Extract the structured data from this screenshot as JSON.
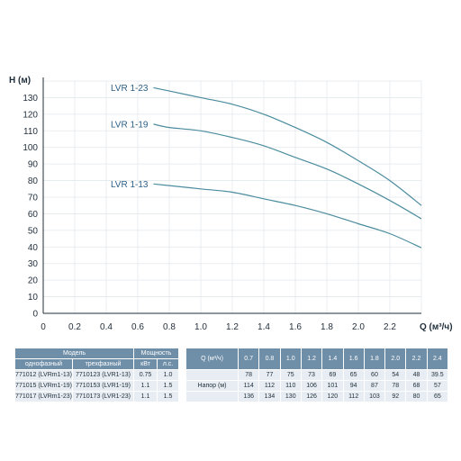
{
  "chart_data": {
    "type": "line",
    "xlabel": "Q (м³/ч)",
    "ylabel": "Н (м)",
    "xlim": [
      0,
      2.4
    ],
    "ylim": [
      0,
      140
    ],
    "xticks": [
      "0",
      "0.2",
      "0.4",
      "0.6",
      "0.8",
      "1.0",
      "1.2",
      "1.4",
      "1.6",
      "1.8",
      "2.0",
      "2.2"
    ],
    "yticks": [
      "0",
      "10",
      "20",
      "30",
      "40",
      "50",
      "60",
      "70",
      "80",
      "90",
      "100",
      "110",
      "120",
      "130"
    ],
    "grid": true,
    "line_color": "#4b8c9e",
    "series": [
      {
        "name": "LVR 1-23",
        "x": [
          0.7,
          0.8,
          1.0,
          1.2,
          1.4,
          1.6,
          1.8,
          2.0,
          2.2,
          2.4
        ],
        "y": [
          136,
          134,
          130,
          126,
          120,
          112,
          103,
          92,
          80,
          65
        ]
      },
      {
        "name": "LVR 1-19",
        "x": [
          0.7,
          0.8,
          1.0,
          1.2,
          1.4,
          1.6,
          1.8,
          2.0,
          2.2,
          2.4
        ],
        "y": [
          114,
          112,
          110,
          106,
          101,
          94,
          87,
          78,
          68,
          57
        ]
      },
      {
        "name": "LVR 1-13",
        "x": [
          0.7,
          0.8,
          1.0,
          1.2,
          1.4,
          1.6,
          1.8,
          2.0,
          2.2,
          2.4
        ],
        "y": [
          78,
          77,
          75,
          73,
          69,
          65,
          60,
          54,
          48,
          39.5
        ]
      }
    ]
  },
  "table": {
    "model_header": "Модель",
    "single_phase_header": "однофазный",
    "three_phase_header": "трехфазный",
    "power_header": "Мощность",
    "kw_header": "кВт",
    "hp_header": "л.с.",
    "q_header": "Q (м³/ч)",
    "head_label": "Напор (м)",
    "q_values": [
      "0.7",
      "0.8",
      "1.0",
      "1.2",
      "1.4",
      "1.6",
      "1.8",
      "2.0",
      "2.2",
      "2.4"
    ],
    "rows": [
      {
        "single": "771012 (LVRm1-13)",
        "three": "7710123 (LVR1-13)",
        "kw": "0.75",
        "hp": "1.0",
        "head": [
          "78",
          "77",
          "75",
          "73",
          "69",
          "65",
          "60",
          "54",
          "48",
          "39.5"
        ]
      },
      {
        "single": "771015 (LVRm1-19)",
        "three": "7710153 (LVR1-19)",
        "kw": "1.1",
        "hp": "1.5",
        "head": [
          "114",
          "112",
          "110",
          "106",
          "101",
          "94",
          "87",
          "78",
          "68",
          "57"
        ]
      },
      {
        "single": "771017 (LVRm1-23)",
        "three": "7710173 (LVR1-23)",
        "kw": "1.1",
        "hp": "1.5",
        "head": [
          "136",
          "134",
          "130",
          "126",
          "120",
          "112",
          "103",
          "92",
          "80",
          "65"
        ]
      }
    ]
  }
}
